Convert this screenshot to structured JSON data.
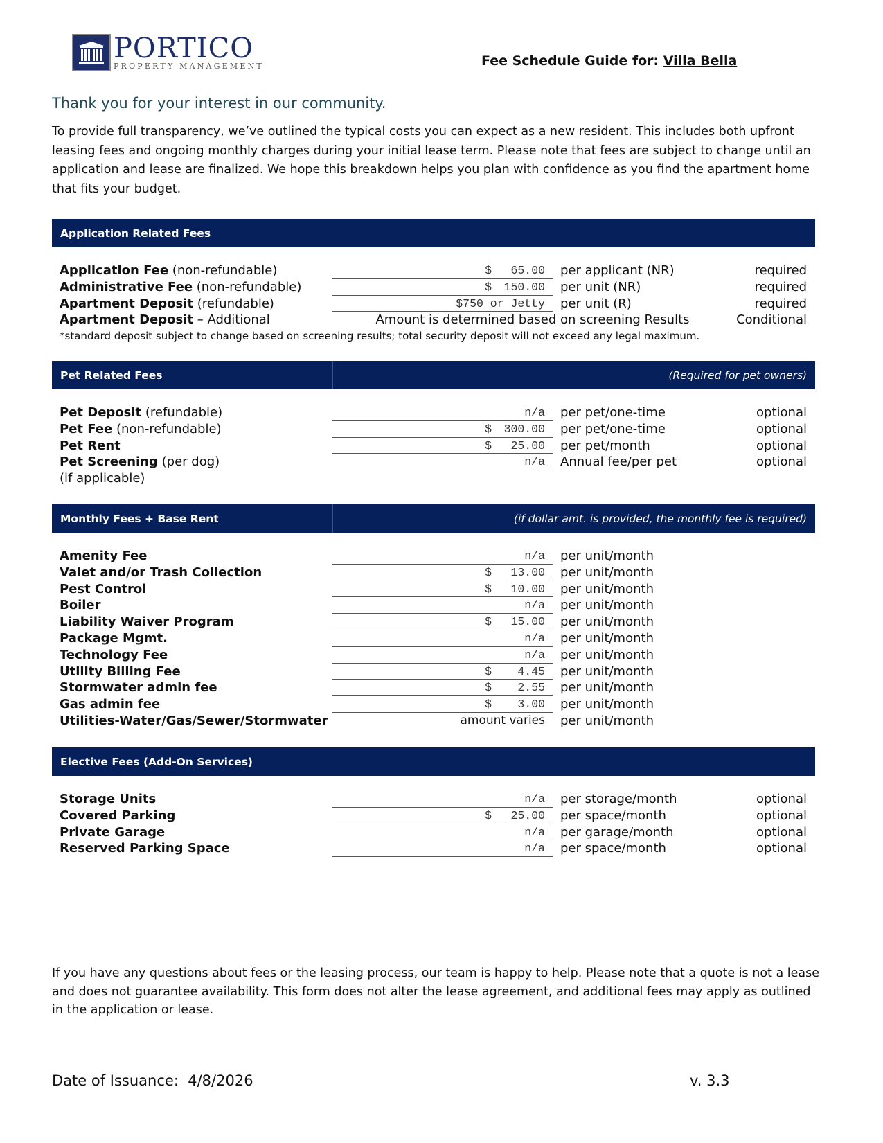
{
  "logo": {
    "name": "PORTICO",
    "tagline": "PROPERTY MANAGEMENT"
  },
  "header": {
    "title_prefix": "Fee Schedule Guide for:",
    "property": "Villa Bella"
  },
  "intro": {
    "heading": "Thank you for your interest in our community.",
    "body": "To provide full transparency, we’ve outlined the typical costs you can expect as a new resident. This includes both upfront leasing fees and ongoing monthly charges during your initial lease term. Please note that fees are subject to change until an application and lease are finalized. We hope this breakdown helps you plan with confidence as you find the apartment home that fits your budget."
  },
  "application": {
    "title": "Application Related Fees",
    "rows": [
      {
        "name": "Application Fee",
        "qual": "(non-refundable)",
        "cur": "$",
        "amount": "65.00",
        "per": "per applicant (NR)",
        "req": "required"
      },
      {
        "name": "Administrative Fee",
        "qual": "(non-refundable)",
        "cur": "$",
        "amount": "150.00",
        "per": "per unit (NR)",
        "req": "required"
      },
      {
        "name": "Apartment Deposit",
        "qual": "(refundable)",
        "cur": "",
        "amount": "$750 or Jetty",
        "per": "per unit (R)",
        "req": "required"
      }
    ],
    "additional": {
      "name": "Apartment Deposit",
      "qual": "– Additional",
      "text": "Amount is determined based on screening Results",
      "req": "Conditional"
    },
    "note": "*standard deposit subject to change based on screening results; total security deposit will not exceed any legal maximum."
  },
  "pet": {
    "title": "Pet Related Fees",
    "subtitle": "(Required for pet owners)",
    "rows": [
      {
        "name": "Pet Deposit",
        "qual": "(refundable)",
        "cur": "",
        "amount": "n/a",
        "per": "per pet/one-time",
        "req": "optional"
      },
      {
        "name": "Pet Fee",
        "qual": "(non-refundable)",
        "cur": "$",
        "amount": "300.00",
        "per": "per pet/one-time",
        "req": "optional"
      },
      {
        "name": "Pet Rent",
        "qual": "",
        "cur": "$",
        "amount": "25.00",
        "per": "per pet/month",
        "req": "optional"
      },
      {
        "name": "Pet Screening",
        "qual": "(per dog)",
        "cur": "",
        "amount": "n/a",
        "per": "Annual fee/per pet",
        "req": "optional"
      }
    ],
    "extra": "(if applicable)"
  },
  "monthly": {
    "title": "Monthly Fees + Base Rent",
    "subtitle": "(if dollar amt. is provided, the monthly fee is required)",
    "rows": [
      {
        "name": "Amenity Fee",
        "cur": "",
        "amount": "n/a",
        "per": "per unit/month"
      },
      {
        "name": "Valet and/or Trash Collection",
        "cur": "$",
        "amount": "13.00",
        "per": "per unit/month"
      },
      {
        "name": "Pest Control",
        "cur": "$",
        "amount": "10.00",
        "per": "per unit/month"
      },
      {
        "name": "Boiler",
        "cur": "",
        "amount": "n/a",
        "per": "per unit/month"
      },
      {
        "name": "Liability Waiver Program",
        "cur": "$",
        "amount": "15.00",
        "per": "per unit/month"
      },
      {
        "name": "Package Mgmt.",
        "cur": "",
        "amount": "n/a",
        "per": "per unit/month"
      },
      {
        "name": "Technology Fee",
        "cur": "",
        "amount": "n/a",
        "per": "per unit/month"
      },
      {
        "name": "Utility Billing Fee",
        "cur": "$",
        "amount": "4.45",
        "per": "per unit/month"
      },
      {
        "name": "Stormwater admin fee",
        "cur": "$",
        "amount": "2.55",
        "per": "per unit/month"
      },
      {
        "name": "Gas admin fee",
        "cur": "$",
        "amount": "3.00",
        "per": "per unit/month"
      },
      {
        "name": "Utilities-Water/Gas/Sewer/Stormwater",
        "cur": "",
        "amount": "amount varies",
        "per": "per unit/month"
      }
    ]
  },
  "elective": {
    "title": "Elective Fees (Add-On Services)",
    "rows": [
      {
        "name": "Storage Units",
        "cur": "",
        "amount": "n/a",
        "per": "per storage/month",
        "req": "optional"
      },
      {
        "name": "Covered Parking",
        "cur": "$",
        "amount": "25.00",
        "per": "per space/month",
        "req": "optional"
      },
      {
        "name": "Private Garage",
        "cur": "",
        "amount": "n/a",
        "per": "per garage/month",
        "req": "optional"
      },
      {
        "name": "Reserved Parking Space",
        "cur": "",
        "amount": "n/a",
        "per": "per space/month",
        "req": "optional"
      }
    ]
  },
  "closing": "If you have any questions about fees or the leasing process, our team is happy to help. Please note that a quote is not a lease and does not guarantee availability. This form does not alter the lease agreement, and additional fees may apply as outlined in the application or lease.",
  "footer": {
    "date_label": "Date of Issuance:",
    "date": "4/8/2026",
    "version": "v. 3.3"
  },
  "colors": {
    "header_bar": "#06205c",
    "heading": "#1f4a5c",
    "logo": "#1d2e6b"
  }
}
